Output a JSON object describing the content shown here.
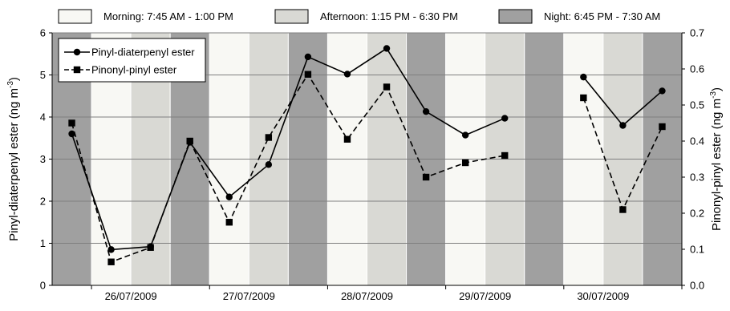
{
  "chart_data": {
    "type": "line",
    "period_legend": [
      {
        "label": "Morning: 7:45 AM - 1:00 PM",
        "color": "#f8f8f4"
      },
      {
        "label": "Afternoon: 1:15 PM - 6:30 PM",
        "color": "#d9d9d4"
      },
      {
        "label": "Night: 6:45 PM - 7:30 AM",
        "color": "#a0a0a0"
      }
    ],
    "period_sequence": [
      "Night",
      "Morning",
      "Afternoon",
      "Night",
      "Morning",
      "Afternoon",
      "Night",
      "Morning",
      "Afternoon",
      "Night",
      "Morning",
      "Afternoon",
      "Night",
      "Morning",
      "Afternoon",
      "Night"
    ],
    "x_ticks": [
      "26/07/2009",
      "27/07/2009",
      "28/07/2009",
      "29/07/2009",
      "30/07/2009"
    ],
    "ylabel_left": "Pinyl-diaterpenyl ester  (ng m⁻³)",
    "ylabel_right": "Pinonyl-pinyl ester  (ng m⁻³)",
    "ylim_left": [
      0,
      6
    ],
    "ylim_right": [
      0,
      0.7
    ],
    "yticks_left": [
      "0",
      "1",
      "2",
      "3",
      "4",
      "5",
      "6"
    ],
    "yticks_right": [
      "0.0",
      "0.1",
      "0.2",
      "0.3",
      "0.4",
      "0.5",
      "0.6",
      "0.7"
    ],
    "grid": true,
    "legend_position": "top-left",
    "series": [
      {
        "name": "Pinyl-diaterpenyl ester",
        "axis": "left",
        "marker": "circle",
        "line_style": "solid",
        "segments": [
          [
            [
              0,
              3.6
            ],
            [
              1,
              0.85
            ],
            [
              2,
              0.92
            ],
            [
              3,
              3.4
            ],
            [
              4,
              2.1
            ],
            [
              5,
              2.87
            ],
            [
              6,
              5.43
            ],
            [
              7,
              5.02
            ],
            [
              8,
              5.63
            ],
            [
              9,
              4.13
            ],
            [
              10,
              3.57
            ],
            [
              11,
              3.97
            ]
          ],
          [
            [
              13,
              4.95
            ],
            [
              14,
              3.8
            ],
            [
              15,
              4.62
            ]
          ]
        ]
      },
      {
        "name": "Pinonyl-pinyl ester",
        "axis": "right",
        "marker": "square",
        "line_style": "dashed",
        "segments": [
          [
            [
              0,
              0.45
            ],
            [
              1,
              0.065
            ],
            [
              2,
              0.105
            ],
            [
              3,
              0.4
            ],
            [
              4,
              0.175
            ],
            [
              5,
              0.41
            ],
            [
              6,
              0.585
            ],
            [
              7,
              0.405
            ],
            [
              8,
              0.55
            ],
            [
              9,
              0.3
            ],
            [
              10,
              0.34
            ],
            [
              11,
              0.36
            ]
          ],
          [
            [
              13,
              0.52
            ],
            [
              14,
              0.21
            ],
            [
              15,
              0.44
            ]
          ]
        ]
      }
    ]
  },
  "colors": {
    "line": "#000000",
    "grid": "#7f7f7f",
    "band_border": "#ffffff"
  }
}
